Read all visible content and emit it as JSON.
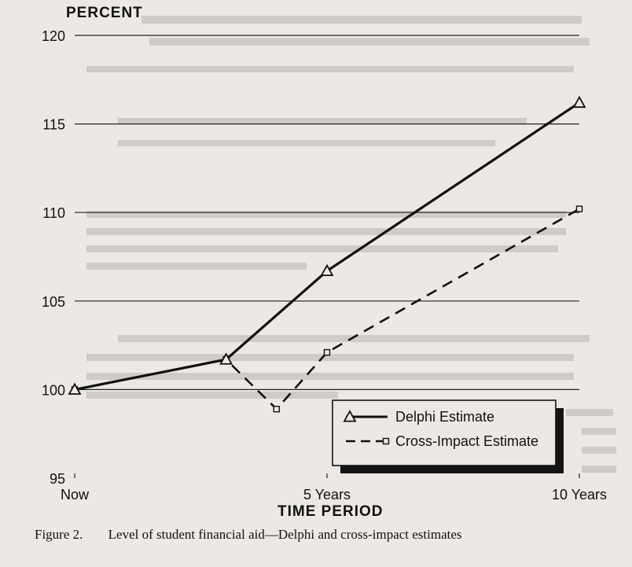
{
  "chart_data": {
    "type": "line",
    "ylabel": "PERCENT",
    "xlabel": "TIME PERIOD",
    "ylim": [
      95,
      120
    ],
    "yticks": [
      "95",
      "100",
      "105",
      "110",
      "115",
      "120"
    ],
    "xticks": [
      "Now",
      "5 Years",
      "10 Years"
    ],
    "xlim": [
      0,
      10
    ],
    "grid": "horizontal",
    "legend_position": "lower-right",
    "series": [
      {
        "name": "Delphi Estimate",
        "style": "solid",
        "marker": "triangle",
        "x": [
          0,
          3,
          5,
          10
        ],
        "y": [
          100,
          101.7,
          106.7,
          116.2
        ]
      },
      {
        "name": "Cross-Impact Estimate",
        "style": "dashed",
        "marker": "square",
        "x": [
          0,
          3,
          4,
          5,
          10
        ],
        "y": [
          100,
          101.7,
          98.9,
          102.1,
          110.2
        ]
      }
    ]
  },
  "caption": {
    "figure": "Figure 2.",
    "text": "Level of student financial aid—Delphi and cross-impact estimates"
  },
  "colors": {
    "ink": "#111111",
    "paper": "#ece9e4"
  }
}
